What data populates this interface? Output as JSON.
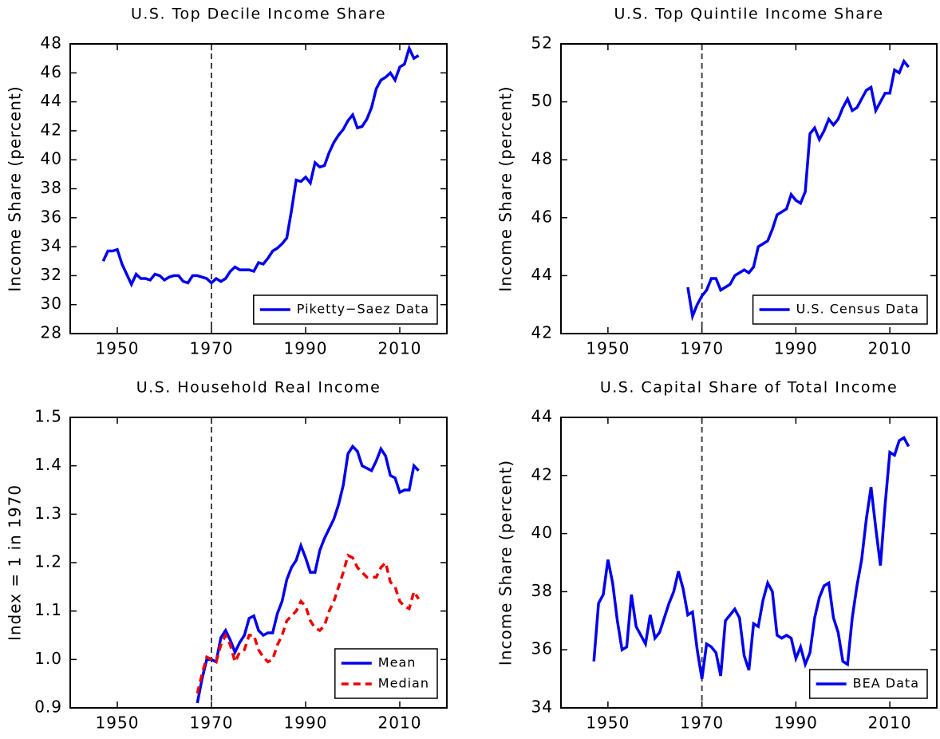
{
  "chart_data": [
    {
      "type": "line",
      "title": "U.S. Top Decile Income Share",
      "ylabel": "Income Share (percent)",
      "x": [
        1947,
        1948,
        1949,
        1950,
        1951,
        1952,
        1953,
        1954,
        1955,
        1956,
        1957,
        1958,
        1959,
        1960,
        1961,
        1962,
        1963,
        1964,
        1965,
        1966,
        1967,
        1968,
        1969,
        1970,
        1971,
        1972,
        1973,
        1974,
        1975,
        1976,
        1977,
        1978,
        1979,
        1980,
        1981,
        1982,
        1983,
        1984,
        1985,
        1986,
        1987,
        1988,
        1989,
        1990,
        1991,
        1992,
        1993,
        1994,
        1995,
        1996,
        1997,
        1998,
        1999,
        2000,
        2001,
        2002,
        2003,
        2004,
        2005,
        2006,
        2007,
        2008,
        2009,
        2010,
        2011,
        2012,
        2013,
        2014
      ],
      "series": [
        {
          "name": "Piketty−Saez Data",
          "color": "#0000ee",
          "linestyle": "solid",
          "values": [
            33.0,
            33.7,
            33.7,
            33.8,
            32.8,
            32.1,
            31.4,
            32.1,
            31.8,
            31.8,
            31.7,
            32.1,
            32.0,
            31.7,
            31.9,
            32.0,
            32.0,
            31.6,
            31.5,
            32.0,
            32.0,
            31.9,
            31.8,
            31.5,
            31.8,
            31.6,
            31.8,
            32.3,
            32.6,
            32.4,
            32.4,
            32.4,
            32.3,
            32.9,
            32.8,
            33.2,
            33.7,
            33.9,
            34.2,
            34.6,
            36.5,
            38.6,
            38.5,
            38.8,
            38.4,
            39.8,
            39.5,
            39.6,
            40.5,
            41.2,
            41.7,
            42.1,
            42.7,
            43.1,
            42.2,
            42.3,
            42.8,
            43.6,
            44.9,
            45.5,
            45.7,
            46.0,
            45.5,
            46.4,
            46.6,
            47.7,
            47.0,
            47.2
          ]
        }
      ],
      "xlim": [
        1940,
        2020
      ],
      "xticks": [
        1950,
        1970,
        1990,
        2010
      ],
      "ylim": [
        28,
        48
      ],
      "yticks": [
        28,
        30,
        32,
        34,
        36,
        38,
        40,
        42,
        44,
        46,
        48
      ],
      "vline": 1970,
      "legend": "lower right"
    },
    {
      "type": "line",
      "title": "U.S. Top Quintile Income Share",
      "ylabel": "Income Share (percent)",
      "x": [
        1967,
        1968,
        1969,
        1970,
        1971,
        1972,
        1973,
        1974,
        1975,
        1976,
        1977,
        1978,
        1979,
        1980,
        1981,
        1982,
        1983,
        1984,
        1985,
        1986,
        1987,
        1988,
        1989,
        1990,
        1991,
        1992,
        1993,
        1994,
        1995,
        1996,
        1997,
        1998,
        1999,
        2000,
        2001,
        2002,
        2003,
        2004,
        2005,
        2006,
        2007,
        2008,
        2009,
        2010,
        2011,
        2012,
        2013,
        2014
      ],
      "series": [
        {
          "name": "U.S. Census Data",
          "color": "#0000ee",
          "linestyle": "solid",
          "values": [
            43.6,
            42.6,
            43.0,
            43.3,
            43.5,
            43.9,
            43.9,
            43.5,
            43.6,
            43.7,
            44.0,
            44.1,
            44.2,
            44.1,
            44.3,
            45.0,
            45.1,
            45.2,
            45.6,
            46.1,
            46.2,
            46.3,
            46.8,
            46.6,
            46.5,
            46.9,
            48.9,
            49.1,
            48.7,
            49.0,
            49.4,
            49.2,
            49.4,
            49.8,
            50.1,
            49.7,
            49.8,
            50.1,
            50.4,
            50.5,
            49.7,
            50.0,
            50.3,
            50.3,
            51.1,
            51.0,
            51.4,
            51.2
          ]
        }
      ],
      "xlim": [
        1940,
        2020
      ],
      "xticks": [
        1950,
        1970,
        1990,
        2010
      ],
      "ylim": [
        42,
        52
      ],
      "yticks": [
        42,
        44,
        46,
        48,
        50,
        52
      ],
      "vline": 1970,
      "legend": "lower right"
    },
    {
      "type": "line",
      "title": "U.S. Household Real Income",
      "ylabel": "Index = 1 in 1970",
      "x": [
        1967,
        1968,
        1969,
        1970,
        1971,
        1972,
        1973,
        1974,
        1975,
        1976,
        1977,
        1978,
        1979,
        1980,
        1981,
        1982,
        1983,
        1984,
        1985,
        1986,
        1987,
        1988,
        1989,
        1990,
        1991,
        1992,
        1993,
        1994,
        1995,
        1996,
        1997,
        1998,
        1999,
        2000,
        2001,
        2002,
        2003,
        2004,
        2005,
        2006,
        2007,
        2008,
        2009,
        2010,
        2011,
        2012,
        2013,
        2014
      ],
      "series": [
        {
          "name": "Mean",
          "color": "#0000ee",
          "linestyle": "solid",
          "values": [
            0.91,
            0.96,
            1.0,
            1.0,
            0.995,
            1.045,
            1.06,
            1.04,
            1.015,
            1.035,
            1.05,
            1.085,
            1.09,
            1.06,
            1.05,
            1.055,
            1.055,
            1.095,
            1.12,
            1.165,
            1.19,
            1.205,
            1.235,
            1.21,
            1.18,
            1.18,
            1.225,
            1.25,
            1.27,
            1.29,
            1.32,
            1.36,
            1.425,
            1.44,
            1.43,
            1.4,
            1.395,
            1.39,
            1.41,
            1.435,
            1.42,
            1.38,
            1.375,
            1.345,
            1.35,
            1.35,
            1.4,
            1.39
          ]
        },
        {
          "name": "Median",
          "color": "#ee0000",
          "linestyle": "dashed",
          "values": [
            0.93,
            0.97,
            1.005,
            1.0,
            0.995,
            1.03,
            1.05,
            1.03,
            0.995,
            1.015,
            1.02,
            1.05,
            1.05,
            1.02,
            1.005,
            0.995,
            1.0,
            1.03,
            1.05,
            1.08,
            1.09,
            1.1,
            1.12,
            1.11,
            1.08,
            1.065,
            1.06,
            1.07,
            1.1,
            1.12,
            1.15,
            1.18,
            1.215,
            1.21,
            1.19,
            1.18,
            1.17,
            1.17,
            1.17,
            1.19,
            1.2,
            1.16,
            1.15,
            1.12,
            1.11,
            1.105,
            1.14,
            1.125
          ]
        }
      ],
      "xlim": [
        1940,
        2020
      ],
      "xticks": [
        1950,
        1970,
        1990,
        2010
      ],
      "ylim": [
        0.9,
        1.5
      ],
      "yticks": [
        0.9,
        {
          "value": 1,
          "label": "1.0"
        },
        1.1,
        1.2,
        1.3,
        1.4,
        1.5
      ],
      "vline": 1970,
      "legend": "lower right"
    },
    {
      "type": "line",
      "title": "U.S. Capital Share of Total Income",
      "ylabel": "Income Share (percent)",
      "x": [
        1947,
        1948,
        1949,
        1950,
        1951,
        1952,
        1953,
        1954,
        1955,
        1956,
        1957,
        1958,
        1959,
        1960,
        1961,
        1962,
        1963,
        1964,
        1965,
        1966,
        1967,
        1968,
        1969,
        1970,
        1971,
        1972,
        1973,
        1974,
        1975,
        1976,
        1977,
        1978,
        1979,
        1980,
        1981,
        1982,
        1983,
        1984,
        1985,
        1986,
        1987,
        1988,
        1989,
        1990,
        1991,
        1992,
        1993,
        1994,
        1995,
        1996,
        1997,
        1998,
        1999,
        2000,
        2001,
        2002,
        2003,
        2004,
        2005,
        2006,
        2007,
        2008,
        2009,
        2010,
        2011,
        2012,
        2013,
        2014
      ],
      "series": [
        {
          "name": "BEA Data",
          "color": "#0000ee",
          "linestyle": "solid",
          "values": [
            35.6,
            37.6,
            37.9,
            39.1,
            38.3,
            37.0,
            36.0,
            36.1,
            37.9,
            36.8,
            36.5,
            36.2,
            37.2,
            36.4,
            36.6,
            37.1,
            37.6,
            38.0,
            38.7,
            38.1,
            37.2,
            37.3,
            36.0,
            35.0,
            36.2,
            36.1,
            35.9,
            35.1,
            37.0,
            37.2,
            37.4,
            37.1,
            35.8,
            35.3,
            36.9,
            36.8,
            37.7,
            38.3,
            38.0,
            36.5,
            36.4,
            36.5,
            36.4,
            35.7,
            36.1,
            35.5,
            35.9,
            37.1,
            37.8,
            38.2,
            38.3,
            37.1,
            36.6,
            35.6,
            35.5,
            37.1,
            38.2,
            39.1,
            40.5,
            41.6,
            40.2,
            38.9,
            41.0,
            42.8,
            42.7,
            43.2,
            43.3,
            43.0
          ]
        }
      ],
      "xlim": [
        1940,
        2020
      ],
      "xticks": [
        1950,
        1970,
        1990,
        2010
      ],
      "ylim": [
        34,
        44
      ],
      "yticks": [
        34,
        36,
        38,
        40,
        42,
        44
      ],
      "vline": 1970,
      "legend": "lower right"
    }
  ]
}
